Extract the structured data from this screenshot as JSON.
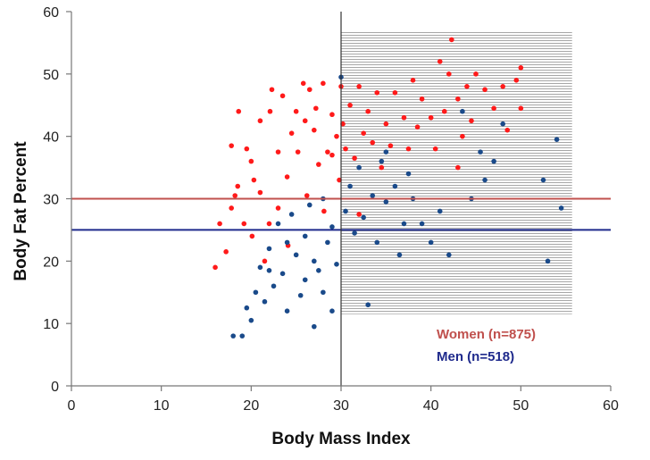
{
  "chart_data": {
    "type": "scatter",
    "title": "",
    "xlabel": "Body Mass Index",
    "ylabel": "Body Fat Percent",
    "xlim": [
      0,
      60
    ],
    "ylim": [
      0,
      60
    ],
    "xticks": [
      0,
      10,
      20,
      30,
      40,
      50,
      60
    ],
    "yticks": [
      0,
      10,
      20,
      30,
      40,
      50,
      60
    ],
    "grid": false,
    "legend_position": "bottom-right",
    "shaded_region": {
      "x_range": [
        30,
        55.7
      ],
      "y_range": [
        11.5,
        56.8
      ],
      "pattern": "horizontal-lines"
    },
    "reference_lines": [
      {
        "name": "women-threshold",
        "orientation": "horizontal",
        "value": 30,
        "color": "#c0504d"
      },
      {
        "name": "men-threshold",
        "orientation": "horizontal",
        "value": 25,
        "color": "#1f2a8c"
      },
      {
        "name": "obesity-bmi",
        "orientation": "vertical",
        "value": 30,
        "color": "#333333"
      }
    ],
    "series": [
      {
        "name": "Women",
        "legend_label": "Women (n=875)",
        "color": "#ff1a1a",
        "legend_color": "#c0504d",
        "points": [
          [
            16.0,
            19.0
          ],
          [
            16.5,
            26.0
          ],
          [
            17.2,
            21.5
          ],
          [
            17.8,
            28.5
          ],
          [
            18.2,
            30.5
          ],
          [
            18.6,
            44.0
          ],
          [
            17.8,
            38.5
          ],
          [
            19.5,
            38.0
          ],
          [
            18.5,
            32.0
          ],
          [
            19.2,
            26.0
          ],
          [
            20.1,
            24.0
          ],
          [
            20.3,
            33.0
          ],
          [
            21.0,
            42.5
          ],
          [
            21.5,
            20.0
          ],
          [
            22.1,
            44.0
          ],
          [
            22.3,
            47.5
          ],
          [
            23.0,
            28.5
          ],
          [
            23.5,
            46.5
          ],
          [
            24.0,
            33.5
          ],
          [
            24.1,
            22.5
          ],
          [
            25.0,
            44.0
          ],
          [
            25.2,
            37.5
          ],
          [
            25.8,
            48.5
          ],
          [
            26.2,
            30.5
          ],
          [
            26.5,
            47.5
          ],
          [
            27.0,
            41.0
          ],
          [
            27.5,
            35.5
          ],
          [
            28.0,
            48.5
          ],
          [
            28.1,
            28.0
          ],
          [
            28.5,
            37.5
          ],
          [
            29.0,
            43.5
          ],
          [
            29.5,
            40.0
          ],
          [
            29.8,
            33.0
          ],
          [
            30.2,
            42.0
          ],
          [
            30.5,
            38.0
          ],
          [
            31.0,
            45.0
          ],
          [
            31.5,
            36.5
          ],
          [
            32.0,
            48.0
          ],
          [
            32.5,
            40.5
          ],
          [
            33.0,
            44.0
          ],
          [
            33.5,
            39.0
          ],
          [
            34.0,
            47.0
          ],
          [
            34.5,
            35.0
          ],
          [
            35.0,
            42.0
          ],
          [
            35.5,
            38.5
          ],
          [
            36.0,
            47.0
          ],
          [
            37.0,
            43.0
          ],
          [
            37.5,
            38.0
          ],
          [
            38.0,
            49.0
          ],
          [
            38.5,
            41.5
          ],
          [
            39.0,
            46.0
          ],
          [
            40.0,
            43.0
          ],
          [
            40.5,
            38.0
          ],
          [
            41.0,
            52.0
          ],
          [
            41.5,
            44.0
          ],
          [
            42.0,
            50.0
          ],
          [
            42.3,
            55.5
          ],
          [
            43.0,
            46.0
          ],
          [
            43.5,
            40.0
          ],
          [
            44.0,
            48.0
          ],
          [
            44.5,
            42.5
          ],
          [
            45.0,
            50.0
          ],
          [
            46.0,
            47.5
          ],
          [
            47.0,
            44.5
          ],
          [
            48.0,
            48.0
          ],
          [
            48.5,
            41.0
          ],
          [
            49.5,
            49.0
          ],
          [
            50.0,
            51.0
          ],
          [
            50.0,
            44.5
          ],
          [
            43.0,
            35.0
          ],
          [
            32.0,
            27.5
          ],
          [
            20.0,
            36.0
          ],
          [
            21.0,
            31.0
          ],
          [
            22.0,
            26.0
          ],
          [
            23.0,
            37.5
          ],
          [
            24.5,
            40.5
          ],
          [
            26.0,
            42.5
          ],
          [
            27.2,
            44.5
          ],
          [
            29.0,
            37.0
          ],
          [
            30.0,
            48.0
          ]
        ]
      },
      {
        "name": "Men",
        "legend_label": "Men (n=518)",
        "color": "#1a4a8a",
        "legend_color": "#1f2a8c",
        "points": [
          [
            18.0,
            8.0
          ],
          [
            19.0,
            8.0
          ],
          [
            19.5,
            12.5
          ],
          [
            20.0,
            10.5
          ],
          [
            20.5,
            15.0
          ],
          [
            21.0,
            19.0
          ],
          [
            21.5,
            13.5
          ],
          [
            22.0,
            22.0
          ],
          [
            22.5,
            16.0
          ],
          [
            23.0,
            26.0
          ],
          [
            23.5,
            18.0
          ],
          [
            24.0,
            12.0
          ],
          [
            24.5,
            27.5
          ],
          [
            25.0,
            21.0
          ],
          [
            25.5,
            14.5
          ],
          [
            26.0,
            24.0
          ],
          [
            26.5,
            29.0
          ],
          [
            27.0,
            9.5
          ],
          [
            27.5,
            18.5
          ],
          [
            28.0,
            30.0
          ],
          [
            28.5,
            23.0
          ],
          [
            29.0,
            25.5
          ],
          [
            29.5,
            19.5
          ],
          [
            30.0,
            49.5
          ],
          [
            30.5,
            28.0
          ],
          [
            31.0,
            32.0
          ],
          [
            31.5,
            24.5
          ],
          [
            32.0,
            35.0
          ],
          [
            32.5,
            27.0
          ],
          [
            33.0,
            13.0
          ],
          [
            33.5,
            30.5
          ],
          [
            34.0,
            23.0
          ],
          [
            34.5,
            36.0
          ],
          [
            35.0,
            29.5
          ],
          [
            36.0,
            32.0
          ],
          [
            37.0,
            26.0
          ],
          [
            37.5,
            34.0
          ],
          [
            38.0,
            30.0
          ],
          [
            39.0,
            26.0
          ],
          [
            40.0,
            23.0
          ],
          [
            41.0,
            28.0
          ],
          [
            42.0,
            21.0
          ],
          [
            43.5,
            44.0
          ],
          [
            44.5,
            30.0
          ],
          [
            45.5,
            37.5
          ],
          [
            46.0,
            33.0
          ],
          [
            47.0,
            36.0
          ],
          [
            48.0,
            42.0
          ],
          [
            52.5,
            33.0
          ],
          [
            53.0,
            20.0
          ],
          [
            54.0,
            39.5
          ],
          [
            54.5,
            28.5
          ],
          [
            36.5,
            21.0
          ],
          [
            35.0,
            37.5
          ],
          [
            28.0,
            15.0
          ],
          [
            26.0,
            17.0
          ],
          [
            24.0,
            23.0
          ],
          [
            22.0,
            18.5
          ],
          [
            27.0,
            20.0
          ],
          [
            29.0,
            12.0
          ]
        ]
      }
    ]
  }
}
